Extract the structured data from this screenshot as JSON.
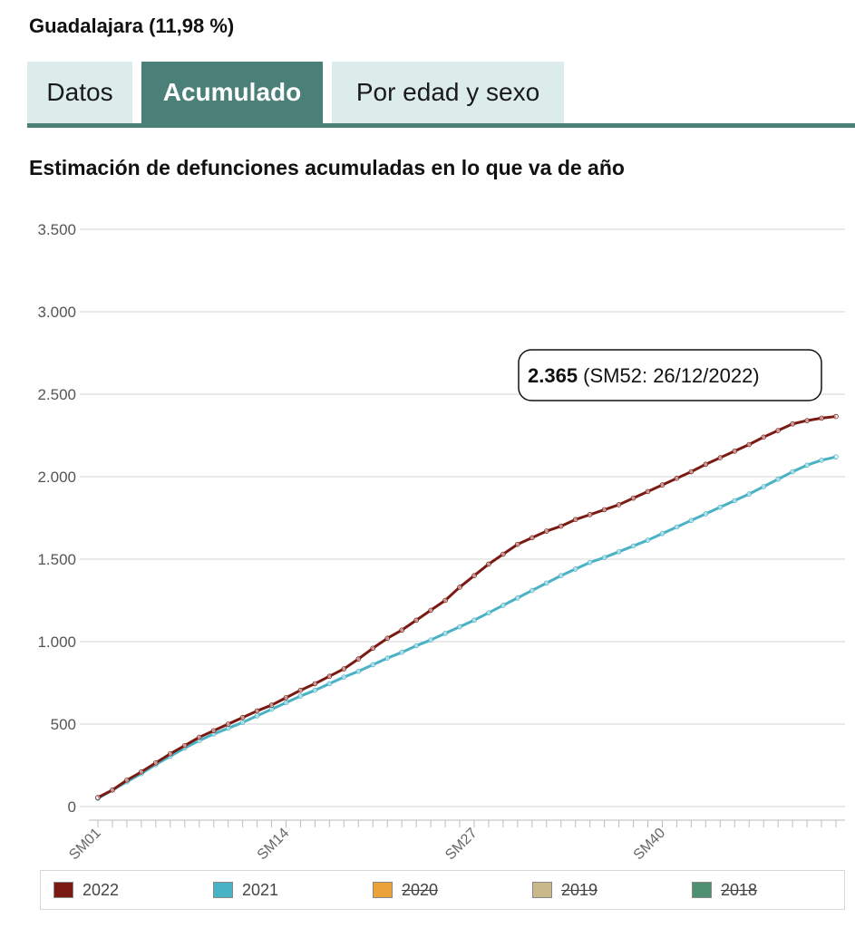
{
  "header": {
    "title": "Guadalajara (11,98 %)"
  },
  "tabs": [
    {
      "label": "Datos",
      "active": false
    },
    {
      "label": "Acumulado",
      "active": true
    },
    {
      "label": "Por edad y sexo",
      "active": false
    }
  ],
  "colors": {
    "accent": "#4a8078",
    "tab_inactive_bg": "#dbeceb"
  },
  "chart_data": {
    "type": "line",
    "title": "Estimación de defunciones acumuladas en lo que va de año",
    "ylim": [
      0,
      3500
    ],
    "yticks": [
      0,
      500,
      1000,
      1500,
      2000,
      2500,
      3000,
      3500
    ],
    "ytick_labels": [
      "0",
      "500",
      "1.000",
      "1.500",
      "2.000",
      "2.500",
      "3.000",
      "3.500"
    ],
    "x_count": 52,
    "xtick_labels": [
      {
        "week": 1,
        "label": "SM01"
      },
      {
        "week": 14,
        "label": "SM14"
      },
      {
        "week": 27,
        "label": "SM27"
      },
      {
        "week": 40,
        "label": "SM40"
      }
    ],
    "grid": true,
    "series": [
      {
        "name": "2022",
        "color": "#7a1a12",
        "visible": true,
        "values": [
          55,
          100,
          160,
          210,
          265,
          320,
          370,
          420,
          460,
          500,
          540,
          580,
          615,
          660,
          705,
          745,
          790,
          835,
          895,
          960,
          1020,
          1070,
          1130,
          1190,
          1250,
          1330,
          1400,
          1470,
          1530,
          1590,
          1630,
          1670,
          1700,
          1740,
          1770,
          1800,
          1830,
          1870,
          1910,
          1950,
          1990,
          2030,
          2075,
          2115,
          2155,
          2195,
          2240,
          2280,
          2320,
          2340,
          2355,
          2365
        ]
      },
      {
        "name": "2021",
        "color": "#49b2c5",
        "visible": true,
        "values": [
          50,
          100,
          150,
          200,
          255,
          305,
          355,
          400,
          440,
          475,
          510,
          550,
          590,
          630,
          670,
          705,
          745,
          785,
          820,
          860,
          900,
          935,
          975,
          1010,
          1050,
          1090,
          1130,
          1175,
          1220,
          1265,
          1310,
          1355,
          1400,
          1440,
          1480,
          1510,
          1545,
          1580,
          1615,
          1655,
          1695,
          1735,
          1775,
          1815,
          1855,
          1895,
          1940,
          1985,
          2030,
          2070,
          2100,
          2120
        ]
      },
      {
        "name": "2020",
        "color": "#eaa239",
        "visible": false
      },
      {
        "name": "2019",
        "color": "#c9b98a",
        "visible": false
      },
      {
        "name": "2018",
        "color": "#4f9072",
        "visible": false
      }
    ],
    "annotation": {
      "value": "2.365",
      "detail": "(SM52: 26/12/2022)"
    }
  }
}
